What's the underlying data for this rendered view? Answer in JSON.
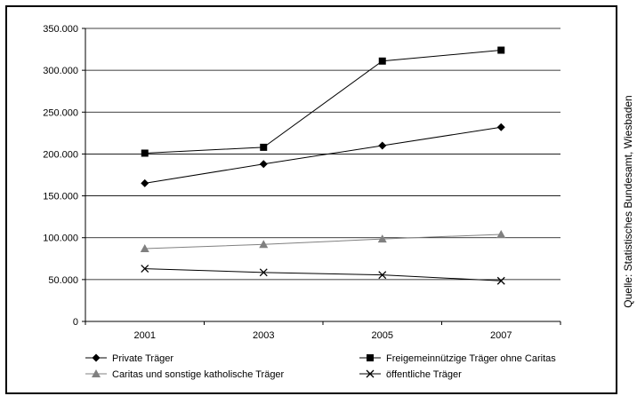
{
  "source_note": "Quelle: Statistisches Bundesamt, Wiesbaden",
  "chart_data": {
    "type": "line",
    "title": "",
    "xlabel": "",
    "ylabel": "",
    "categories": [
      "2001",
      "2003",
      "2005",
      "2007"
    ],
    "ylim": [
      0,
      350000
    ],
    "yticks": [
      "0",
      "50.000",
      "100.000",
      "150.000",
      "200.000",
      "250.000",
      "300.000",
      "350.000"
    ],
    "grid": true,
    "legend_position": "bottom",
    "series": [
      {
        "name": "Private Träger",
        "marker": "diamond",
        "color": "#000000",
        "values": [
          165000,
          188000,
          210000,
          232000
        ]
      },
      {
        "name": "Freigemeinnützige Träger ohne Caritas",
        "marker": "square",
        "color": "#000000",
        "values": [
          201000,
          208000,
          311000,
          324000
        ]
      },
      {
        "name": "Caritas und sonstige katholische Träger",
        "marker": "triangle",
        "color": "#808080",
        "values": [
          87000,
          92000,
          98500,
          104000
        ]
      },
      {
        "name": "öffentliche Träger",
        "marker": "x",
        "color": "#000000",
        "values": [
          63000,
          58500,
          55500,
          48500
        ]
      }
    ]
  }
}
